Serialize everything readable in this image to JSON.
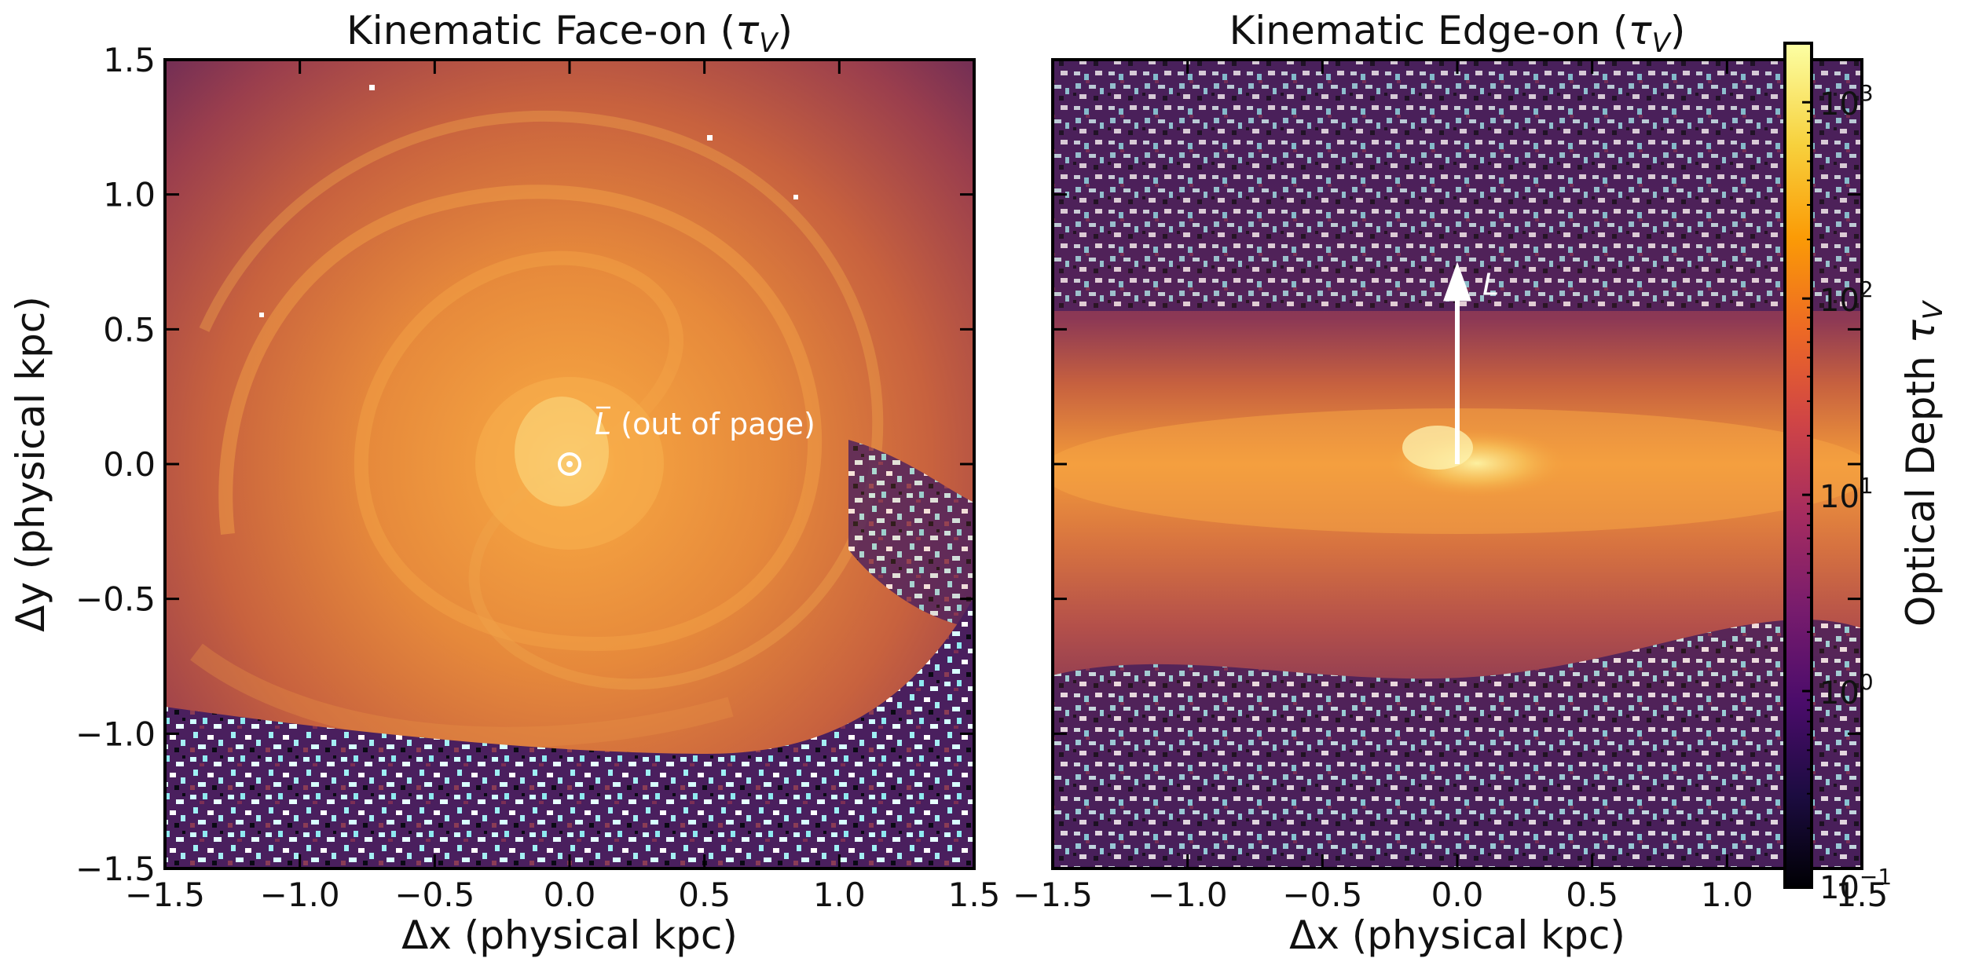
{
  "chart_data": [
    {
      "type": "heatmap",
      "title": "Kinematic Face-on (τV)",
      "title_main": "Kinematic Face-on (",
      "title_sym": "τ",
      "title_sub": "V",
      "title_close": ")",
      "xlabel": "Δx (physical kpc)",
      "ylabel": "Δy (physical kpc)",
      "xlim": [
        -1.5,
        1.5
      ],
      "ylim": [
        -1.5,
        1.5
      ],
      "xticks": [
        "−1.5",
        "−1.0",
        "−0.5",
        "0.0",
        "0.5",
        "1.0",
        "1.5"
      ],
      "yticks": [
        "−1.5",
        "−1.0",
        "−0.5",
        "0.0",
        "0.5",
        "1.0",
        "1.5"
      ],
      "annotation": "(out of page)",
      "annotation_symbol": "L",
      "annotation_point": [
        0.0,
        0.0
      ],
      "description_values": {
        "core_optical_depth": 500,
        "disk_optical_depth": 80,
        "outer_optical_depth": 3
      }
    },
    {
      "type": "heatmap",
      "title": "Kinematic Edge-on (τV)",
      "title_main": "Kinematic Edge-on (",
      "title_sym": "τ",
      "title_sub": "V",
      "title_close": ")",
      "xlabel": "Δx (physical kpc)",
      "xlim": [
        -1.5,
        1.5
      ],
      "ylim": [
        -1.5,
        1.5
      ],
      "xticks": [
        "−1.5",
        "−1.0",
        "−0.5",
        "0.0",
        "0.5",
        "1.0",
        "1.5"
      ],
      "annotation_symbol": "L",
      "arrow_from": [
        0.0,
        0.0
      ],
      "arrow_to": [
        0.0,
        0.75
      ]
    }
  ],
  "colorbar": {
    "label_main": "Optical Depth ",
    "label_sym": "τ",
    "label_sub": "V",
    "scale": "log",
    "range": [
      0.1,
      2000
    ],
    "ticks": [
      {
        "value": 0.1,
        "base": "10",
        "exp": "−1"
      },
      {
        "value": 1,
        "base": "10",
        "exp": "0"
      },
      {
        "value": 10,
        "base": "10",
        "exp": "1"
      },
      {
        "value": 100,
        "base": "10",
        "exp": "2"
      },
      {
        "value": 1000,
        "base": "10",
        "exp": "3"
      }
    ],
    "colormap": "inferno",
    "colormap_stops": [
      "#000004",
      "#1c0c41",
      "#4b0c6b",
      "#781c6d",
      "#a52c60",
      "#cf4446",
      "#ed6925",
      "#fb9b06",
      "#f7d13d",
      "#fcffa4"
    ]
  }
}
